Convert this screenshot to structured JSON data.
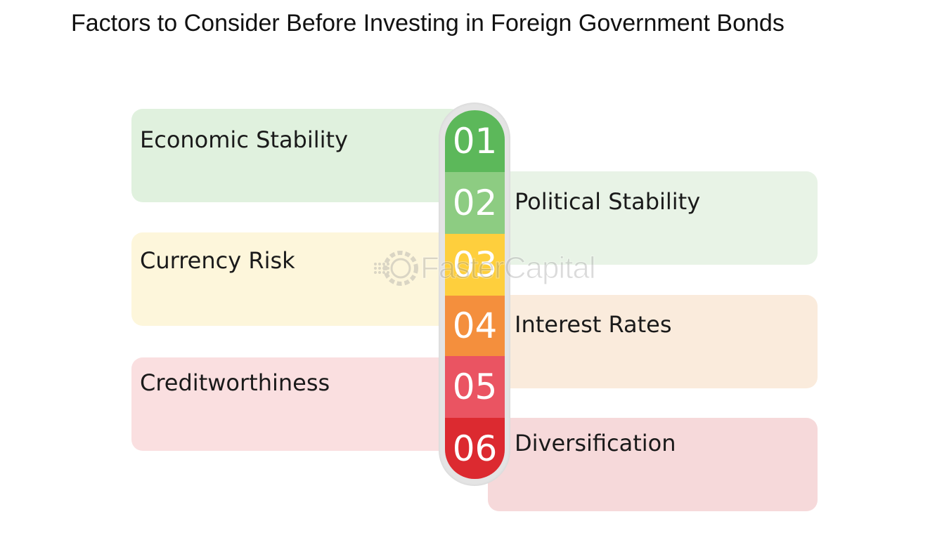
{
  "title": "Factors to Consider Before Investing in Foreign Government Bonds",
  "factors": [
    {
      "number": "01",
      "label": "Economic Stability",
      "color": "#5cb85a",
      "card_color": "#e0f1de"
    },
    {
      "number": "02",
      "label": "Political Stability",
      "color": "#8dcc82",
      "card_color": "#e8f3e6"
    },
    {
      "number": "03",
      "label": "Currency Risk",
      "color": "#fecf3d",
      "card_color": "#fdf6db"
    },
    {
      "number": "04",
      "label": "Interest Rates",
      "color": "#f48f3d",
      "card_color": "#faebdc"
    },
    {
      "number": "05",
      "label": "Creditworthiness",
      "color": "#ea5462",
      "card_color": "#fadfe0"
    },
    {
      "number": "06",
      "label": "Diversification",
      "color": "#dc2a30",
      "card_color": "#f6d9da"
    }
  ],
  "watermark": {
    "text": "FasterCapital",
    "icon": "gear-logo-icon"
  }
}
